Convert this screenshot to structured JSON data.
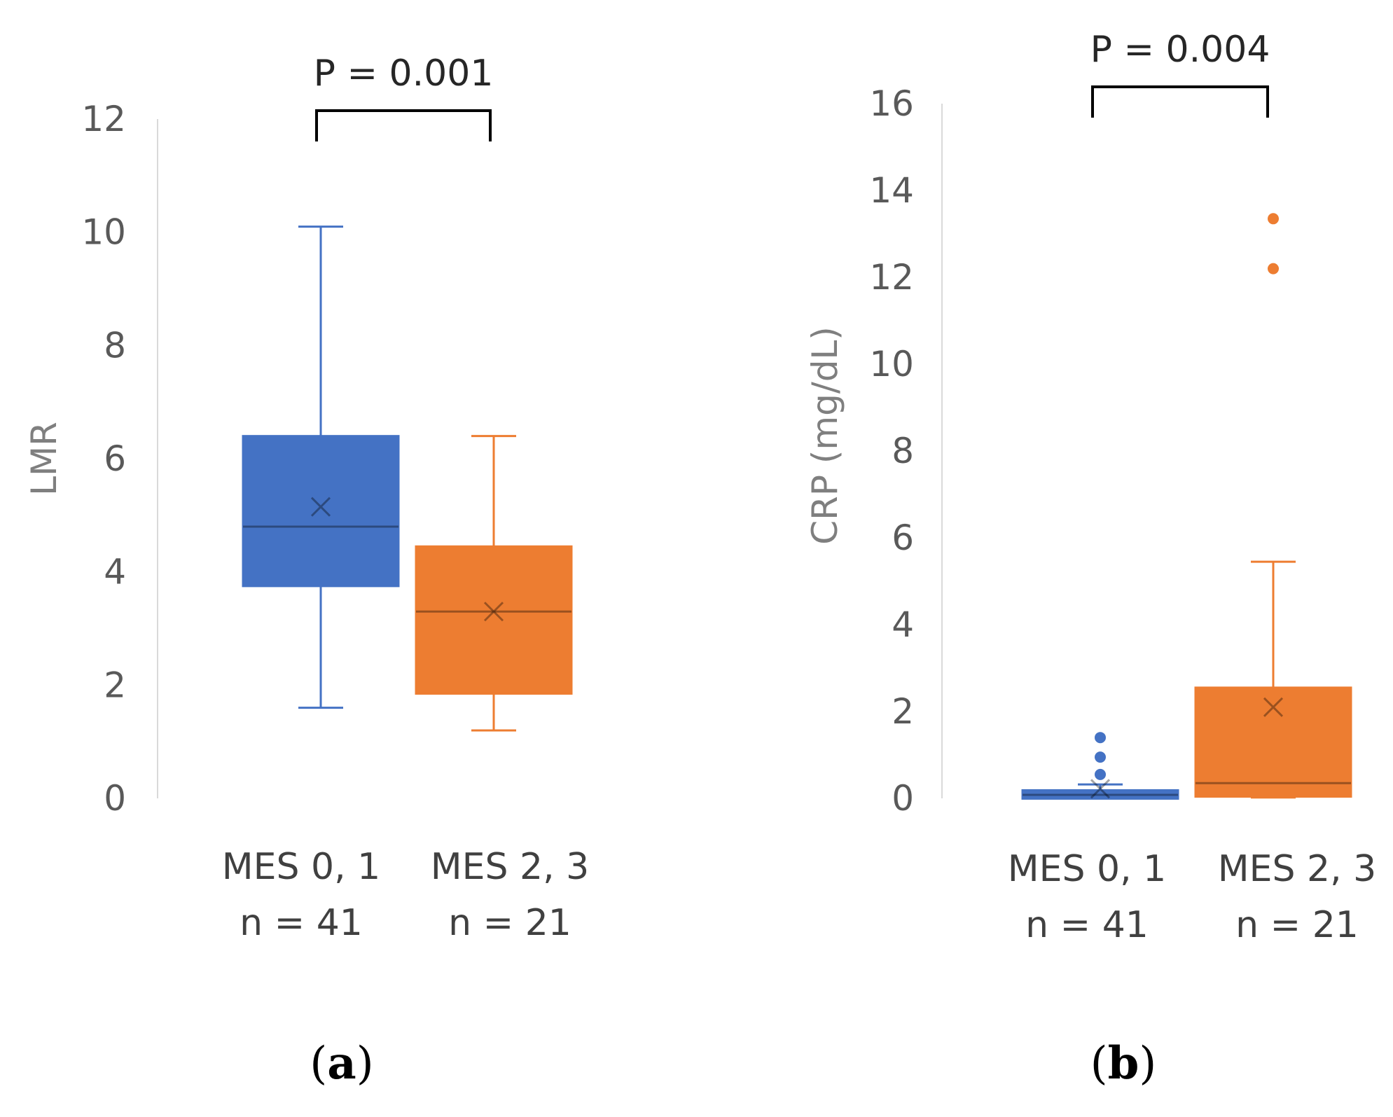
{
  "chart_data": [
    {
      "type": "boxplot",
      "panel_label_open": "(",
      "panel_label_letter": "a",
      "panel_label_close": ")",
      "ylabel": "LMR",
      "ylim": [
        0,
        12
      ],
      "yticks": [
        0,
        2,
        4,
        6,
        8,
        10,
        12
      ],
      "significance": "P = 0.001",
      "colors": {
        "MES 0, 1": "#4472c4",
        "MES 2, 3": "#ed7d31"
      },
      "groups": [
        {
          "name": "MES 0, 1",
          "n_label": "n = 41",
          "color": "#4472c4",
          "whisker_low": 1.6,
          "q1": 3.75,
          "median": 4.8,
          "q3": 6.4,
          "whisker_high": 10.1,
          "mean": 5.15,
          "outliers": []
        },
        {
          "name": "MES 2, 3",
          "n_label": "n = 21",
          "color": "#ed7d31",
          "whisker_low": 1.2,
          "q1": 1.85,
          "median": 3.3,
          "q3": 4.45,
          "whisker_high": 6.4,
          "mean": 3.3,
          "outliers": []
        }
      ]
    },
    {
      "type": "boxplot",
      "panel_label_open": "(",
      "panel_label_letter": "b",
      "panel_label_close": ")",
      "ylabel": "CRP (mg/dL)",
      "ylim": [
        0,
        16
      ],
      "yticks": [
        0,
        2,
        4,
        6,
        8,
        10,
        12,
        14,
        16
      ],
      "significance": "P = 0.004",
      "colors": {
        "MES 0, 1": "#4472c4",
        "MES 2, 3": "#ed7d31"
      },
      "groups": [
        {
          "name": "MES 0, 1",
          "n_label": "n = 41",
          "color": "#4472c4",
          "whisker_low": 0.02,
          "q1": 0.03,
          "median": 0.08,
          "q3": 0.15,
          "whisker_high": 0.32,
          "mean": 0.22,
          "outliers": [
            0.55,
            0.95,
            1.4
          ]
        },
        {
          "name": "MES 2, 3",
          "n_label": "n = 21",
          "color": "#ed7d31",
          "whisker_low": 0.02,
          "q1": 0.04,
          "median": 0.35,
          "q3": 2.55,
          "whisker_high": 5.45,
          "mean": 2.1,
          "outliers": [
            12.2,
            13.35
          ]
        }
      ]
    }
  ]
}
